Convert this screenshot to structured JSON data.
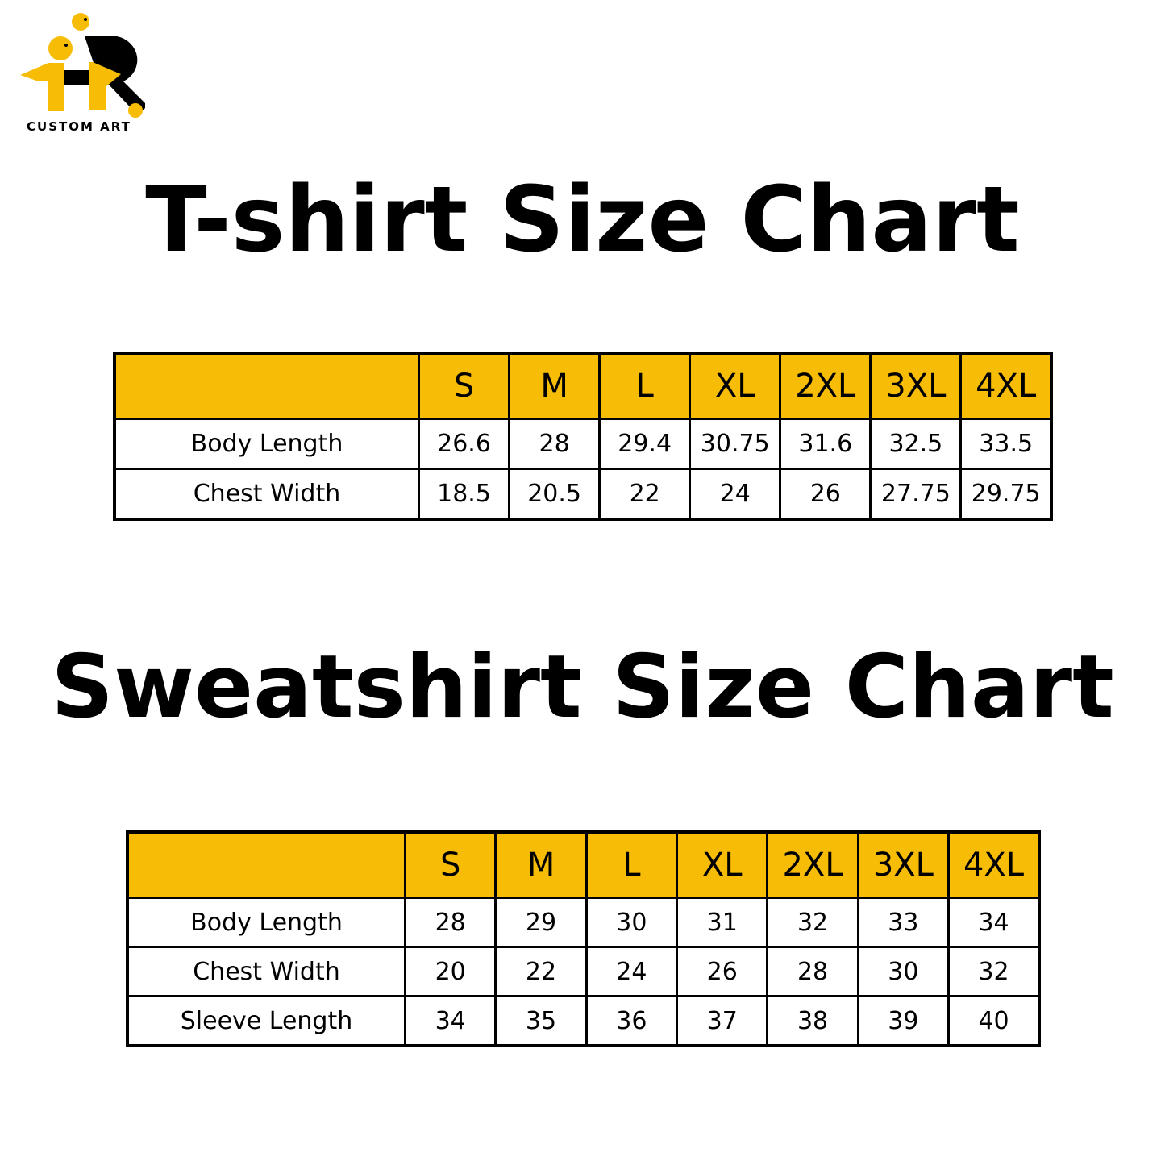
{
  "logo": {
    "text": "CUSTOM ART",
    "colors": {
      "yellow": "#F7BC05",
      "black": "#000000"
    }
  },
  "tshirt": {
    "title": "T-shirt Size Chart",
    "sizes": [
      "S",
      "M",
      "L",
      "XL",
      "2XL",
      "3XL",
      "4XL"
    ],
    "rows": [
      {
        "label": "Body Length",
        "values": [
          "26.6",
          "28",
          "29.4",
          "30.75",
          "31.6",
          "32.5",
          "33.5"
        ]
      },
      {
        "label": "Chest Width",
        "values": [
          "18.5",
          "20.5",
          "22",
          "24",
          "26",
          "27.75",
          "29.75"
        ]
      }
    ]
  },
  "sweatshirt": {
    "title": "Sweatshirt Size Chart",
    "sizes": [
      "S",
      "M",
      "L",
      "XL",
      "2XL",
      "3XL",
      "4XL"
    ],
    "rows": [
      {
        "label": "Body Length",
        "values": [
          "28",
          "29",
          "30",
          "31",
          "32",
          "33",
          "34"
        ]
      },
      {
        "label": "Chest Width",
        "values": [
          "20",
          "22",
          "24",
          "26",
          "28",
          "30",
          "32"
        ]
      },
      {
        "label": "Sleeve Length",
        "values": [
          "34",
          "35",
          "36",
          "37",
          "38",
          "39",
          "40"
        ]
      }
    ]
  },
  "header_color": "#F7BC05"
}
